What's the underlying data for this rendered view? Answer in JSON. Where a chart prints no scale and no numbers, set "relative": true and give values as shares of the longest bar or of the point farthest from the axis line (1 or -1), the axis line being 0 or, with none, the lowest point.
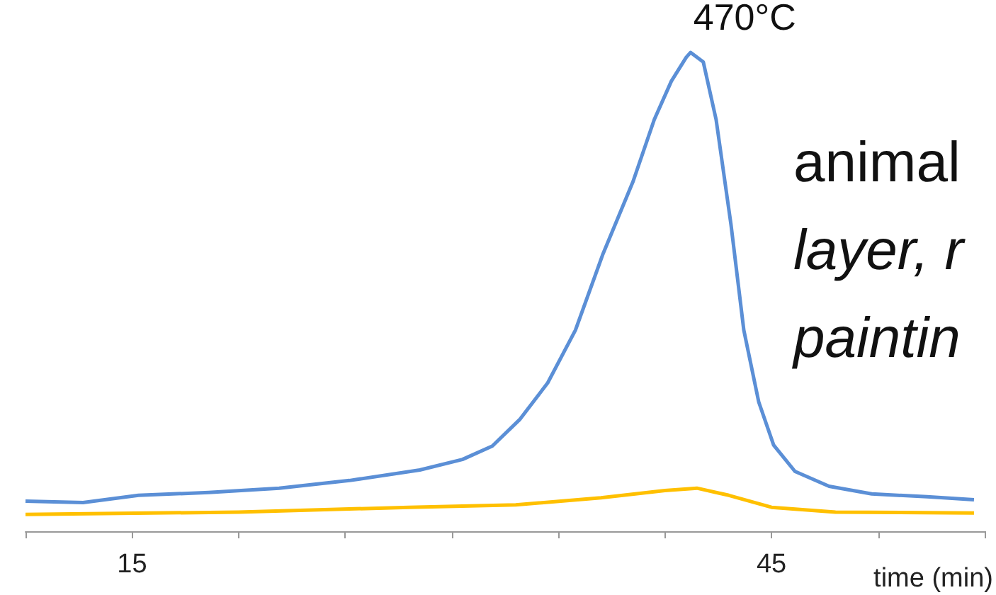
{
  "chart_data": {
    "type": "line",
    "relative": true,
    "xlabel": "time (min)",
    "xlim": [
      10,
      55
    ],
    "xticks": [
      {
        "value": 10,
        "label": null
      },
      15,
      {
        "value": 20,
        "label": null
      },
      {
        "value": 25,
        "label": null
      },
      {
        "value": 30,
        "label": null
      },
      {
        "value": 35,
        "label": null
      },
      {
        "value": 40,
        "label": null
      },
      45,
      {
        "value": 50,
        "label": null
      },
      {
        "value": 55,
        "label": null
      }
    ],
    "tick_labels": "x",
    "grid": false,
    "marker": "none",
    "line_style": "solid",
    "series": [
      {
        "color": "#5b8fd6",
        "x": [
          10,
          12.7,
          15.3,
          18.6,
          21.9,
          25.2,
          28.5,
          30.5,
          31.9,
          33.2,
          34.5,
          35.8,
          37.1,
          38.5,
          39.5,
          40.3,
          41.0,
          41.2,
          41.8,
          42.4,
          43.1,
          43.7,
          44.4,
          45.1,
          46.1,
          47.7,
          49.7,
          52.3,
          54.5
        ],
        "values": [
          0.063,
          0.06,
          0.075,
          0.081,
          0.09,
          0.106,
          0.128,
          0.15,
          0.178,
          0.234,
          0.31,
          0.42,
          0.58,
          0.73,
          0.86,
          0.94,
          0.99,
          1.0,
          0.98,
          0.86,
          0.64,
          0.42,
          0.27,
          0.18,
          0.125,
          0.094,
          0.078,
          0.072,
          0.066
        ]
      },
      {
        "color": "#ffc000",
        "x": [
          10,
          20,
          28,
          33,
          37,
          40,
          41.5,
          43,
          45,
          48,
          54.5
        ],
        "values": [
          0.035,
          0.04,
          0.05,
          0.055,
          0.07,
          0.085,
          0.09,
          0.075,
          0.05,
          0.04,
          0.038
        ]
      }
    ],
    "annotations": [
      {
        "text": "470°C",
        "x": 41.2,
        "y": 1
      },
      "animal",
      "layer, r",
      "paintin"
    ]
  }
}
